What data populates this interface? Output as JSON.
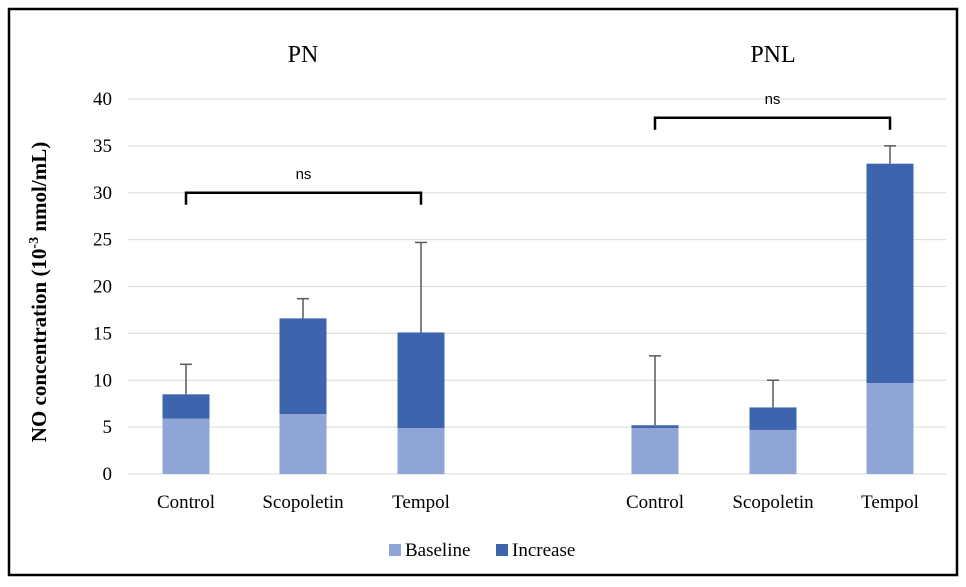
{
  "chart_data": {
    "type": "bar",
    "stacked": true,
    "groups": [
      {
        "title": "PN",
        "categories": [
          "Control",
          "Scopoletin",
          "Tempol"
        ]
      },
      {
        "title": "PNL",
        "categories": [
          "Control",
          "Scopoletin",
          "Tempol"
        ]
      }
    ],
    "series": [
      {
        "name": "Baseline",
        "color": "#8fa5d6",
        "values": [
          5.9,
          6.4,
          4.9,
          4.9,
          4.7,
          9.7
        ]
      },
      {
        "name": "Increase",
        "color": "#3d64ad",
        "values": [
          2.6,
          10.2,
          10.2,
          0.3,
          2.4,
          23.4
        ]
      }
    ],
    "error_bar_tops": [
      11.7,
      18.7,
      24.7,
      12.6,
      10.0,
      35.0
    ],
    "ylabel_main": "NO concentration (10",
    "ylabel_sup": "-3",
    "ylabel_rest": " nmol/mL)",
    "ylim": [
      0,
      40
    ],
    "yticks": [
      "0",
      "5",
      "10",
      "15",
      "20",
      "25",
      "30",
      "35",
      "40"
    ],
    "grid": true,
    "legend_position": "bottom",
    "significance": [
      {
        "label": "ns",
        "from_index": 0,
        "to_index": 2,
        "level": 30
      },
      {
        "label": "ns",
        "from_index": 3,
        "to_index": 5,
        "level": 38
      }
    ]
  }
}
